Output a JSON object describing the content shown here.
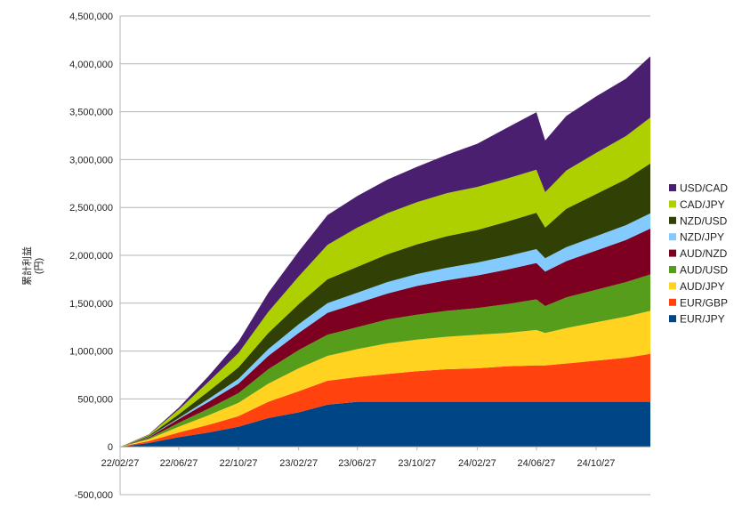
{
  "chart_data": {
    "type": "area",
    "stacked": true,
    "title": "",
    "xlabel": "",
    "ylabel": "累計利益\n(円)",
    "ylim": [
      -500000,
      4500000
    ],
    "y_ticks": [
      -500000,
      0,
      500000,
      1000000,
      1500000,
      2000000,
      2500000,
      3000000,
      3500000,
      4000000,
      4500000
    ],
    "y_tick_labels": [
      "-500,000",
      "0",
      "500,000",
      "1,000,000",
      "1,500,000",
      "2,000,000",
      "2,500,000",
      "3,000,000",
      "3,500,000",
      "4,000,000",
      "4,500,000"
    ],
    "x_tick_labels": [
      "22/02/27",
      "22/06/27",
      "22/10/27",
      "23/02/27",
      "23/06/27",
      "23/10/27",
      "24/02/27",
      "24/06/27",
      "24/10/27"
    ],
    "x_tick_positions": [
      "2022-02-27",
      "2022-06-27",
      "2022-10-27",
      "2023-02-27",
      "2023-06-27",
      "2023-10-27",
      "2024-02-27",
      "2024-06-27",
      "2024-10-27"
    ],
    "xlim": [
      "2022-02-27",
      "2025-02-15"
    ],
    "grid": "horizontal",
    "legend_position": "right",
    "series_order_top_to_bottom": [
      "USD/CAD",
      "CAD/JPY",
      "NZD/USD",
      "NZD/JPY",
      "AUD/NZD",
      "AUD/USD",
      "AUD/JPY",
      "EUR/GBP",
      "EUR/JPY"
    ],
    "x": [
      "2022-02-27",
      "2022-04-27",
      "2022-06-27",
      "2022-08-27",
      "2022-10-27",
      "2022-12-27",
      "2023-02-27",
      "2023-04-27",
      "2023-06-27",
      "2023-08-27",
      "2023-10-27",
      "2023-12-27",
      "2024-02-27",
      "2024-04-27",
      "2024-06-27",
      "2024-07-15",
      "2024-08-27",
      "2024-10-27",
      "2024-12-27",
      "2025-02-15"
    ],
    "series": [
      {
        "name": "EUR/JPY",
        "color": "#004586",
        "values": [
          0,
          40000,
          100000,
          150000,
          210000,
          300000,
          360000,
          440000,
          470000,
          470000,
          470000,
          470000,
          470000,
          470000,
          470000,
          470000,
          470000,
          470000,
          470000,
          470000
        ]
      },
      {
        "name": "EUR/GBP",
        "color": "#ff420e",
        "values": [
          0,
          20000,
          50000,
          80000,
          110000,
          170000,
          220000,
          250000,
          260000,
          290000,
          320000,
          340000,
          350000,
          370000,
          380000,
          380000,
          400000,
          430000,
          460000,
          500000
        ]
      },
      {
        "name": "AUD/JPY",
        "color": "#ffd320",
        "values": [
          0,
          20000,
          60000,
          100000,
          140000,
          190000,
          240000,
          260000,
          290000,
          320000,
          330000,
          340000,
          350000,
          350000,
          370000,
          340000,
          370000,
          400000,
          430000,
          450000
        ]
      },
      {
        "name": "AUD/USD",
        "color": "#579d1c",
        "values": [
          0,
          10000,
          40000,
          70000,
          100000,
          150000,
          190000,
          220000,
          230000,
          250000,
          260000,
          270000,
          280000,
          300000,
          320000,
          280000,
          320000,
          340000,
          360000,
          380000
        ]
      },
      {
        "name": "AUD/NZD",
        "color": "#7e0021",
        "values": [
          0,
          10000,
          40000,
          70000,
          100000,
          140000,
          180000,
          230000,
          250000,
          270000,
          300000,
          320000,
          340000,
          360000,
          380000,
          360000,
          380000,
          410000,
          440000,
          480000
        ]
      },
      {
        "name": "NZD/JPY",
        "color": "#83caff",
        "values": [
          0,
          5000,
          10000,
          30000,
          50000,
          70000,
          90000,
          100000,
          110000,
          120000,
          125000,
          130000,
          135000,
          140000,
          145000,
          140000,
          145000,
          150000,
          155000,
          160000
        ]
      },
      {
        "name": "NZD/USD",
        "color": "#314004",
        "values": [
          0,
          10000,
          40000,
          80000,
          120000,
          170000,
          210000,
          250000,
          270000,
          290000,
          310000,
          330000,
          340000,
          360000,
          380000,
          320000,
          400000,
          440000,
          480000,
          520000
        ]
      },
      {
        "name": "CAD/JPY",
        "color": "#aecf00",
        "values": [
          0,
          10000,
          50000,
          100000,
          150000,
          220000,
          290000,
          360000,
          410000,
          430000,
          440000,
          450000,
          450000,
          450000,
          450000,
          370000,
          400000,
          430000,
          450000,
          480000
        ]
      },
      {
        "name": "USD/CAD",
        "color": "#4b1f6f",
        "values": [
          0,
          5000,
          20000,
          60000,
          120000,
          200000,
          260000,
          310000,
          330000,
          350000,
          370000,
          400000,
          450000,
          530000,
          600000,
          540000,
          570000,
          590000,
          600000,
          640000
        ]
      }
    ]
  }
}
